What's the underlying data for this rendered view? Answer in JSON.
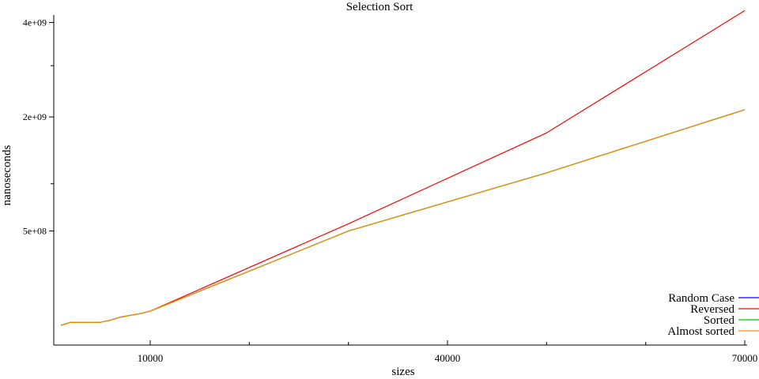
{
  "chart_data": {
    "type": "line",
    "title": "Selection Sort",
    "xlabel": "sizes",
    "ylabel": "nanoseconds",
    "xlim": [
      1000,
      70000
    ],
    "ylim": [
      0,
      4250000000
    ],
    "x_ticks": [
      10000,
      40000,
      70000
    ],
    "x_tick_labels": [
      "10000",
      "40000",
      "70000"
    ],
    "x_minor_ticks": [
      20000,
      30000,
      50000,
      60000
    ],
    "y_ticks": [
      500000000,
      2000000000,
      4000000000
    ],
    "y_tick_labels": [
      "5e+08",
      "2e+09",
      "4e+09"
    ],
    "y_minor_ticks": [
      1000000000,
      3000000000
    ],
    "x": [
      1000,
      2000,
      3000,
      4000,
      5000,
      6000,
      7000,
      8000,
      9000,
      10000,
      30000,
      50000,
      70000
    ],
    "series": [
      {
        "name": "Random Case",
        "color": "#0000ff",
        "values": [
          15000000,
          20000000,
          20000000,
          20000000,
          20000000,
          24000000,
          30000000,
          34000000,
          38000000,
          44000000,
          500000000,
          1140000000,
          2130000000
        ]
      },
      {
        "name": "Reversed",
        "color": "#ff0000",
        "values": [
          15000000,
          20000000,
          20000000,
          20000000,
          20000000,
          24000000,
          30000000,
          34000000,
          38000000,
          44000000,
          565000000,
          1730000000,
          4300000000
        ]
      },
      {
        "name": "Sorted",
        "color": "#00cc00",
        "values": [
          15000000,
          20000000,
          20000000,
          20000000,
          20000000,
          24000000,
          30000000,
          34000000,
          38000000,
          44000000,
          500000000,
          1140000000,
          2130000000
        ]
      },
      {
        "name": "Almost sorted",
        "color": "#ff8c00",
        "values": [
          15000000,
          20000000,
          20000000,
          20000000,
          20000000,
          24000000,
          30000000,
          34000000,
          38000000,
          44000000,
          500000000,
          1140000000,
          2130000000
        ]
      }
    ],
    "scale": "sqrt",
    "grid": false,
    "legend_position": "bottom-right"
  }
}
